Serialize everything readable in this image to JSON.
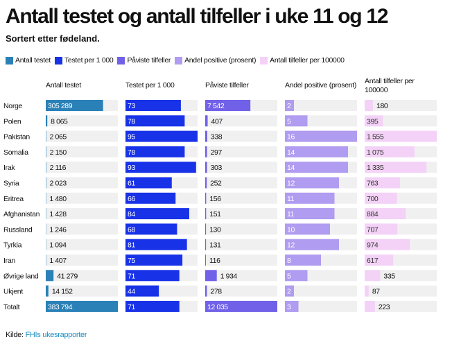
{
  "title": "Antall testet og antall tilfeller i uke 11 og 12",
  "subtitle": "Sortert etter fødeland.",
  "source": {
    "prefix": "Kilde: ",
    "link": "FHIs ukesrapporter"
  },
  "legend": [
    {
      "label": "Antall testet",
      "color": "#2a81b8"
    },
    {
      "label": "Testet per 1 000",
      "color": "#1832e8"
    },
    {
      "label": "Påviste tilfeller",
      "color": "#7061e8"
    },
    {
      "label": "Andel positive (prosent)",
      "color": "#b09cf0"
    },
    {
      "label": "Antall tilfeller per 100000",
      "color": "#f4d2f7"
    }
  ],
  "chart_data": {
    "type": "table",
    "categories": [
      "Norge",
      "Polen",
      "Pakistan",
      "Somalia",
      "Irak",
      "Syria",
      "Eritrea",
      "Afghanistan",
      "Russland",
      "Tyrkia",
      "Iran",
      "Øvrige land",
      "Ukjent",
      "Totalt"
    ],
    "series": [
      {
        "name": "Antall testet",
        "header": [
          "Antall testet"
        ],
        "color": "#2a81b8",
        "max": 383794,
        "values": [
          305289,
          8065,
          2065,
          2150,
          2116,
          2023,
          1480,
          1428,
          1246,
          1094,
          1407,
          41279,
          14152,
          383794
        ],
        "labels": [
          "305 289",
          "8 065",
          "2 065",
          "2 150",
          "2 116",
          "2 023",
          "1 480",
          "1 428",
          "1 246",
          "1 094",
          "1 407",
          "41 279",
          "14 152",
          "383 794"
        ]
      },
      {
        "name": "Testet per 1 000",
        "header": [
          "Testet per 1 000"
        ],
        "color": "#1832e8",
        "max": 95,
        "values": [
          73,
          78,
          95,
          78,
          93,
          61,
          66,
          84,
          68,
          81,
          75,
          71,
          44,
          71
        ],
        "labels": [
          "73",
          "78",
          "95",
          "78",
          "93",
          "61",
          "66",
          "84",
          "68",
          "81",
          "75",
          "71",
          "44",
          "71"
        ]
      },
      {
        "name": "Påviste tilfeller",
        "header": [
          "Påviste tilfeller"
        ],
        "color": "#7061e8",
        "max": 12035,
        "values": [
          7542,
          407,
          338,
          297,
          303,
          252,
          156,
          151,
          130,
          131,
          116,
          1934,
          278,
          12035
        ],
        "labels": [
          "7 542",
          "407",
          "338",
          "297",
          "303",
          "252",
          "156",
          "151",
          "130",
          "131",
          "116",
          "1 934",
          "278",
          "12 035"
        ]
      },
      {
        "name": "Andel positive (prosent)",
        "header": [
          "Andel positive (prosent)"
        ],
        "color": "#b09cf0",
        "max": 16,
        "values": [
          2,
          5,
          16,
          14,
          14,
          12,
          11,
          11,
          10,
          12,
          8,
          5,
          2,
          3
        ],
        "labels": [
          "2",
          "5",
          "16",
          "14",
          "14",
          "12",
          "11",
          "11",
          "10",
          "12",
          "8",
          "5",
          "2",
          "3"
        ]
      },
      {
        "name": "Antall tilfeller per 100000",
        "header": [
          "Antall tilfeller per",
          "100000"
        ],
        "color": "#f4d2f7",
        "max": 1555,
        "values": [
          180,
          395,
          1555,
          1075,
          1335,
          763,
          700,
          884,
          707,
          974,
          617,
          335,
          87,
          223
        ],
        "labels": [
          "180",
          "395",
          "1 555",
          "1 075",
          "1 335",
          "763",
          "700",
          "884",
          "707",
          "974",
          "617",
          "335",
          "87",
          "223"
        ]
      }
    ]
  }
}
